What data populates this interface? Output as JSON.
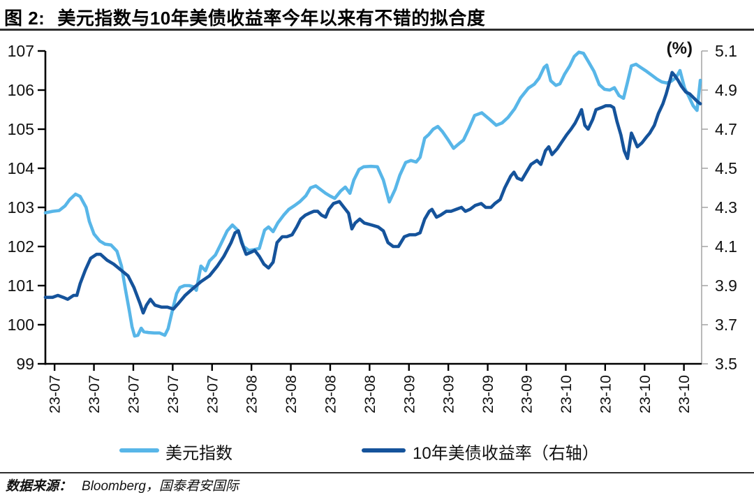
{
  "header": {
    "figure_label": "图 2:",
    "title": "美元指数与10年美债收益率今年以来有不错的拟合度"
  },
  "footer": {
    "source_label": "数据来源：",
    "source_text": "Bloomberg，国泰君安国际"
  },
  "chart_data": {
    "type": "line",
    "title": "美元指数与10年美债收益率今年以来有不错的拟合度",
    "percent_label": "(%)",
    "grid": false,
    "legend_position": "bottom",
    "left_axis": {
      "min": 99,
      "max": 107,
      "ticks": [
        107,
        106,
        105,
        104,
        103,
        102,
        101,
        100,
        99
      ]
    },
    "right_axis": {
      "min": 3.5,
      "max": 5.1,
      "ticks": [
        5.1,
        4.9,
        4.7,
        4.5,
        4.3,
        4.1,
        3.9,
        3.7,
        3.5
      ]
    },
    "x_ticks": {
      "labels": [
        "23-07",
        "23-07",
        "23-07",
        "23-07",
        "23-07",
        "23-08",
        "23-08",
        "23-08",
        "23-08",
        "23-09",
        "23-09",
        "23-09",
        "23-09",
        "23-10",
        "23-10",
        "23-10",
        "23-10"
      ],
      "positions": [
        0.014,
        0.074,
        0.134,
        0.194,
        0.254,
        0.314,
        0.374,
        0.434,
        0.494,
        0.554,
        0.614,
        0.674,
        0.733,
        0.793,
        0.853,
        0.913,
        0.973
      ]
    },
    "series": [
      {
        "name": "美元指数",
        "axis": "left",
        "color": "#58b6e8",
        "points": [
          [
            0.0,
            102.86
          ],
          [
            0.011,
            102.9
          ],
          [
            0.021,
            102.92
          ],
          [
            0.03,
            103.04
          ],
          [
            0.037,
            103.2
          ],
          [
            0.046,
            103.34
          ],
          [
            0.053,
            103.28
          ],
          [
            0.062,
            103.0
          ],
          [
            0.067,
            102.64
          ],
          [
            0.074,
            102.32
          ],
          [
            0.083,
            102.14
          ],
          [
            0.091,
            102.06
          ],
          [
            0.1,
            102.04
          ],
          [
            0.109,
            101.88
          ],
          [
            0.116,
            101.5
          ],
          [
            0.122,
            100.9
          ],
          [
            0.128,
            100.35
          ],
          [
            0.132,
            99.95
          ],
          [
            0.136,
            99.71
          ],
          [
            0.141,
            99.73
          ],
          [
            0.146,
            99.91
          ],
          [
            0.15,
            99.82
          ],
          [
            0.157,
            99.8
          ],
          [
            0.166,
            99.79
          ],
          [
            0.174,
            99.79
          ],
          [
            0.182,
            99.73
          ],
          [
            0.187,
            99.9
          ],
          [
            0.194,
            100.4
          ],
          [
            0.2,
            100.8
          ],
          [
            0.205,
            100.95
          ],
          [
            0.212,
            101.0
          ],
          [
            0.219,
            101.0
          ],
          [
            0.226,
            100.97
          ],
          [
            0.23,
            100.88
          ],
          [
            0.237,
            101.5
          ],
          [
            0.244,
            101.38
          ],
          [
            0.25,
            101.63
          ],
          [
            0.259,
            101.78
          ],
          [
            0.267,
            102.05
          ],
          [
            0.277,
            102.4
          ],
          [
            0.285,
            102.55
          ],
          [
            0.294,
            102.4
          ],
          [
            0.302,
            102.0
          ],
          [
            0.31,
            101.9
          ],
          [
            0.318,
            101.92
          ],
          [
            0.326,
            101.95
          ],
          [
            0.334,
            102.42
          ],
          [
            0.34,
            102.5
          ],
          [
            0.347,
            102.38
          ],
          [
            0.354,
            102.6
          ],
          [
            0.363,
            102.8
          ],
          [
            0.371,
            102.95
          ],
          [
            0.38,
            103.05
          ],
          [
            0.388,
            103.15
          ],
          [
            0.397,
            103.3
          ],
          [
            0.404,
            103.5
          ],
          [
            0.412,
            103.55
          ],
          [
            0.419,
            103.46
          ],
          [
            0.427,
            103.36
          ],
          [
            0.434,
            103.29
          ],
          [
            0.441,
            103.23
          ],
          [
            0.45,
            103.42
          ],
          [
            0.457,
            103.52
          ],
          [
            0.464,
            103.36
          ],
          [
            0.47,
            103.7
          ],
          [
            0.478,
            103.97
          ],
          [
            0.485,
            104.04
          ],
          [
            0.496,
            104.05
          ],
          [
            0.506,
            104.04
          ],
          [
            0.515,
            103.7
          ],
          [
            0.524,
            103.14
          ],
          [
            0.533,
            103.46
          ],
          [
            0.54,
            103.82
          ],
          [
            0.549,
            104.15
          ],
          [
            0.557,
            104.2
          ],
          [
            0.565,
            104.16
          ],
          [
            0.571,
            104.28
          ],
          [
            0.578,
            104.77
          ],
          [
            0.584,
            104.86
          ],
          [
            0.591,
            105.0
          ],
          [
            0.598,
            105.07
          ],
          [
            0.605,
            104.94
          ],
          [
            0.614,
            104.72
          ],
          [
            0.622,
            104.51
          ],
          [
            0.631,
            104.64
          ],
          [
            0.637,
            104.72
          ],
          [
            0.645,
            105.0
          ],
          [
            0.654,
            105.35
          ],
          [
            0.665,
            105.42
          ],
          [
            0.677,
            105.25
          ],
          [
            0.687,
            105.1
          ],
          [
            0.696,
            105.16
          ],
          [
            0.705,
            105.3
          ],
          [
            0.715,
            105.52
          ],
          [
            0.724,
            105.8
          ],
          [
            0.736,
            106.05
          ],
          [
            0.745,
            106.15
          ],
          [
            0.752,
            106.3
          ],
          [
            0.76,
            106.58
          ],
          [
            0.764,
            106.64
          ],
          [
            0.77,
            106.24
          ],
          [
            0.778,
            106.12
          ],
          [
            0.784,
            106.16
          ],
          [
            0.791,
            106.4
          ],
          [
            0.799,
            106.62
          ],
          [
            0.806,
            106.86
          ],
          [
            0.813,
            106.97
          ],
          [
            0.82,
            106.94
          ],
          [
            0.827,
            106.74
          ],
          [
            0.836,
            106.48
          ],
          [
            0.844,
            106.14
          ],
          [
            0.852,
            106.02
          ],
          [
            0.86,
            106.0
          ],
          [
            0.867,
            106.06
          ],
          [
            0.874,
            105.86
          ],
          [
            0.881,
            105.79
          ],
          [
            0.887,
            106.2
          ],
          [
            0.893,
            106.62
          ],
          [
            0.9,
            106.66
          ],
          [
            0.907,
            106.58
          ],
          [
            0.916,
            106.48
          ],
          [
            0.924,
            106.38
          ],
          [
            0.932,
            106.28
          ],
          [
            0.939,
            106.21
          ],
          [
            0.947,
            106.18
          ],
          [
            0.954,
            106.23
          ],
          [
            0.961,
            106.32
          ],
          [
            0.967,
            106.5
          ],
          [
            0.974,
            106.05
          ],
          [
            0.981,
            105.82
          ],
          [
            0.987,
            105.6
          ],
          [
            0.993,
            105.48
          ],
          [
            0.998,
            106.25
          ]
        ]
      },
      {
        "name": "10年美债收益率（右轴）",
        "axis": "right",
        "color": "#15539b",
        "points": [
          [
            0.0,
            3.84
          ],
          [
            0.011,
            3.84
          ],
          [
            0.019,
            3.85
          ],
          [
            0.027,
            3.84
          ],
          [
            0.034,
            3.83
          ],
          [
            0.043,
            3.85
          ],
          [
            0.048,
            3.85
          ],
          [
            0.053,
            3.91
          ],
          [
            0.061,
            3.98
          ],
          [
            0.069,
            4.04
          ],
          [
            0.078,
            4.06
          ],
          [
            0.084,
            4.06
          ],
          [
            0.094,
            4.03
          ],
          [
            0.104,
            4.01
          ],
          [
            0.115,
            3.98
          ],
          [
            0.126,
            3.95
          ],
          [
            0.135,
            3.89
          ],
          [
            0.144,
            3.81
          ],
          [
            0.149,
            3.76
          ],
          [
            0.154,
            3.8
          ],
          [
            0.16,
            3.83
          ],
          [
            0.167,
            3.8
          ],
          [
            0.177,
            3.79
          ],
          [
            0.186,
            3.79
          ],
          [
            0.195,
            3.78
          ],
          [
            0.203,
            3.81
          ],
          [
            0.213,
            3.85
          ],
          [
            0.223,
            3.88
          ],
          [
            0.237,
            3.92
          ],
          [
            0.25,
            3.95
          ],
          [
            0.262,
            4.0
          ],
          [
            0.272,
            4.05
          ],
          [
            0.283,
            4.12
          ],
          [
            0.289,
            4.17
          ],
          [
            0.294,
            4.18
          ],
          [
            0.299,
            4.12
          ],
          [
            0.306,
            4.06
          ],
          [
            0.313,
            4.07
          ],
          [
            0.319,
            4.08
          ],
          [
            0.326,
            4.05
          ],
          [
            0.333,
            4.01
          ],
          [
            0.34,
            3.99
          ],
          [
            0.347,
            4.02
          ],
          [
            0.353,
            4.12
          ],
          [
            0.361,
            4.15
          ],
          [
            0.368,
            4.15
          ],
          [
            0.376,
            4.16
          ],
          [
            0.383,
            4.2
          ],
          [
            0.389,
            4.24
          ],
          [
            0.396,
            4.26
          ],
          [
            0.402,
            4.27
          ],
          [
            0.409,
            4.28
          ],
          [
            0.415,
            4.28
          ],
          [
            0.421,
            4.26
          ],
          [
            0.427,
            4.25
          ],
          [
            0.432,
            4.29
          ],
          [
            0.439,
            4.32
          ],
          [
            0.448,
            4.33
          ],
          [
            0.455,
            4.3
          ],
          [
            0.462,
            4.27
          ],
          [
            0.467,
            4.19
          ],
          [
            0.472,
            4.22
          ],
          [
            0.479,
            4.24
          ],
          [
            0.486,
            4.22
          ],
          [
            0.497,
            4.21
          ],
          [
            0.507,
            4.2
          ],
          [
            0.515,
            4.18
          ],
          [
            0.522,
            4.12
          ],
          [
            0.53,
            4.1
          ],
          [
            0.538,
            4.1
          ],
          [
            0.547,
            4.15
          ],
          [
            0.555,
            4.16
          ],
          [
            0.564,
            4.16
          ],
          [
            0.571,
            4.17
          ],
          [
            0.578,
            4.24
          ],
          [
            0.585,
            4.28
          ],
          [
            0.589,
            4.29
          ],
          [
            0.596,
            4.25
          ],
          [
            0.602,
            4.26
          ],
          [
            0.611,
            4.28
          ],
          [
            0.618,
            4.28
          ],
          [
            0.626,
            4.29
          ],
          [
            0.634,
            4.3
          ],
          [
            0.64,
            4.28
          ],
          [
            0.647,
            4.29
          ],
          [
            0.655,
            4.31
          ],
          [
            0.664,
            4.32
          ],
          [
            0.671,
            4.3
          ],
          [
            0.679,
            4.3
          ],
          [
            0.685,
            4.32
          ],
          [
            0.693,
            4.34
          ],
          [
            0.7,
            4.4
          ],
          [
            0.709,
            4.46
          ],
          [
            0.714,
            4.48
          ],
          [
            0.719,
            4.45
          ],
          [
            0.726,
            4.44
          ],
          [
            0.733,
            4.48
          ],
          [
            0.74,
            4.52
          ],
          [
            0.749,
            4.54
          ],
          [
            0.755,
            4.52
          ],
          [
            0.762,
            4.59
          ],
          [
            0.767,
            4.61
          ],
          [
            0.772,
            4.57
          ],
          [
            0.78,
            4.6
          ],
          [
            0.786,
            4.63
          ],
          [
            0.794,
            4.67
          ],
          [
            0.801,
            4.7
          ],
          [
            0.807,
            4.73
          ],
          [
            0.813,
            4.77
          ],
          [
            0.817,
            4.8
          ],
          [
            0.822,
            4.72
          ],
          [
            0.827,
            4.7
          ],
          [
            0.834,
            4.75
          ],
          [
            0.839,
            4.8
          ],
          [
            0.847,
            4.81
          ],
          [
            0.854,
            4.82
          ],
          [
            0.861,
            4.82
          ],
          [
            0.866,
            4.81
          ],
          [
            0.871,
            4.74
          ],
          [
            0.877,
            4.67
          ],
          [
            0.882,
            4.59
          ],
          [
            0.887,
            4.55
          ],
          [
            0.893,
            4.68
          ],
          [
            0.897,
            4.65
          ],
          [
            0.902,
            4.61
          ],
          [
            0.909,
            4.63
          ],
          [
            0.916,
            4.66
          ],
          [
            0.921,
            4.68
          ],
          [
            0.928,
            4.72
          ],
          [
            0.934,
            4.78
          ],
          [
            0.941,
            4.83
          ],
          [
            0.946,
            4.88
          ],
          [
            0.951,
            4.94
          ],
          [
            0.955,
            4.99
          ],
          [
            0.96,
            4.97
          ],
          [
            0.964,
            4.95
          ],
          [
            0.969,
            4.92
          ],
          [
            0.976,
            4.89
          ],
          [
            0.982,
            4.88
          ],
          [
            0.988,
            4.86
          ],
          [
            0.994,
            4.84
          ],
          [
            0.998,
            4.83
          ]
        ]
      }
    ]
  }
}
